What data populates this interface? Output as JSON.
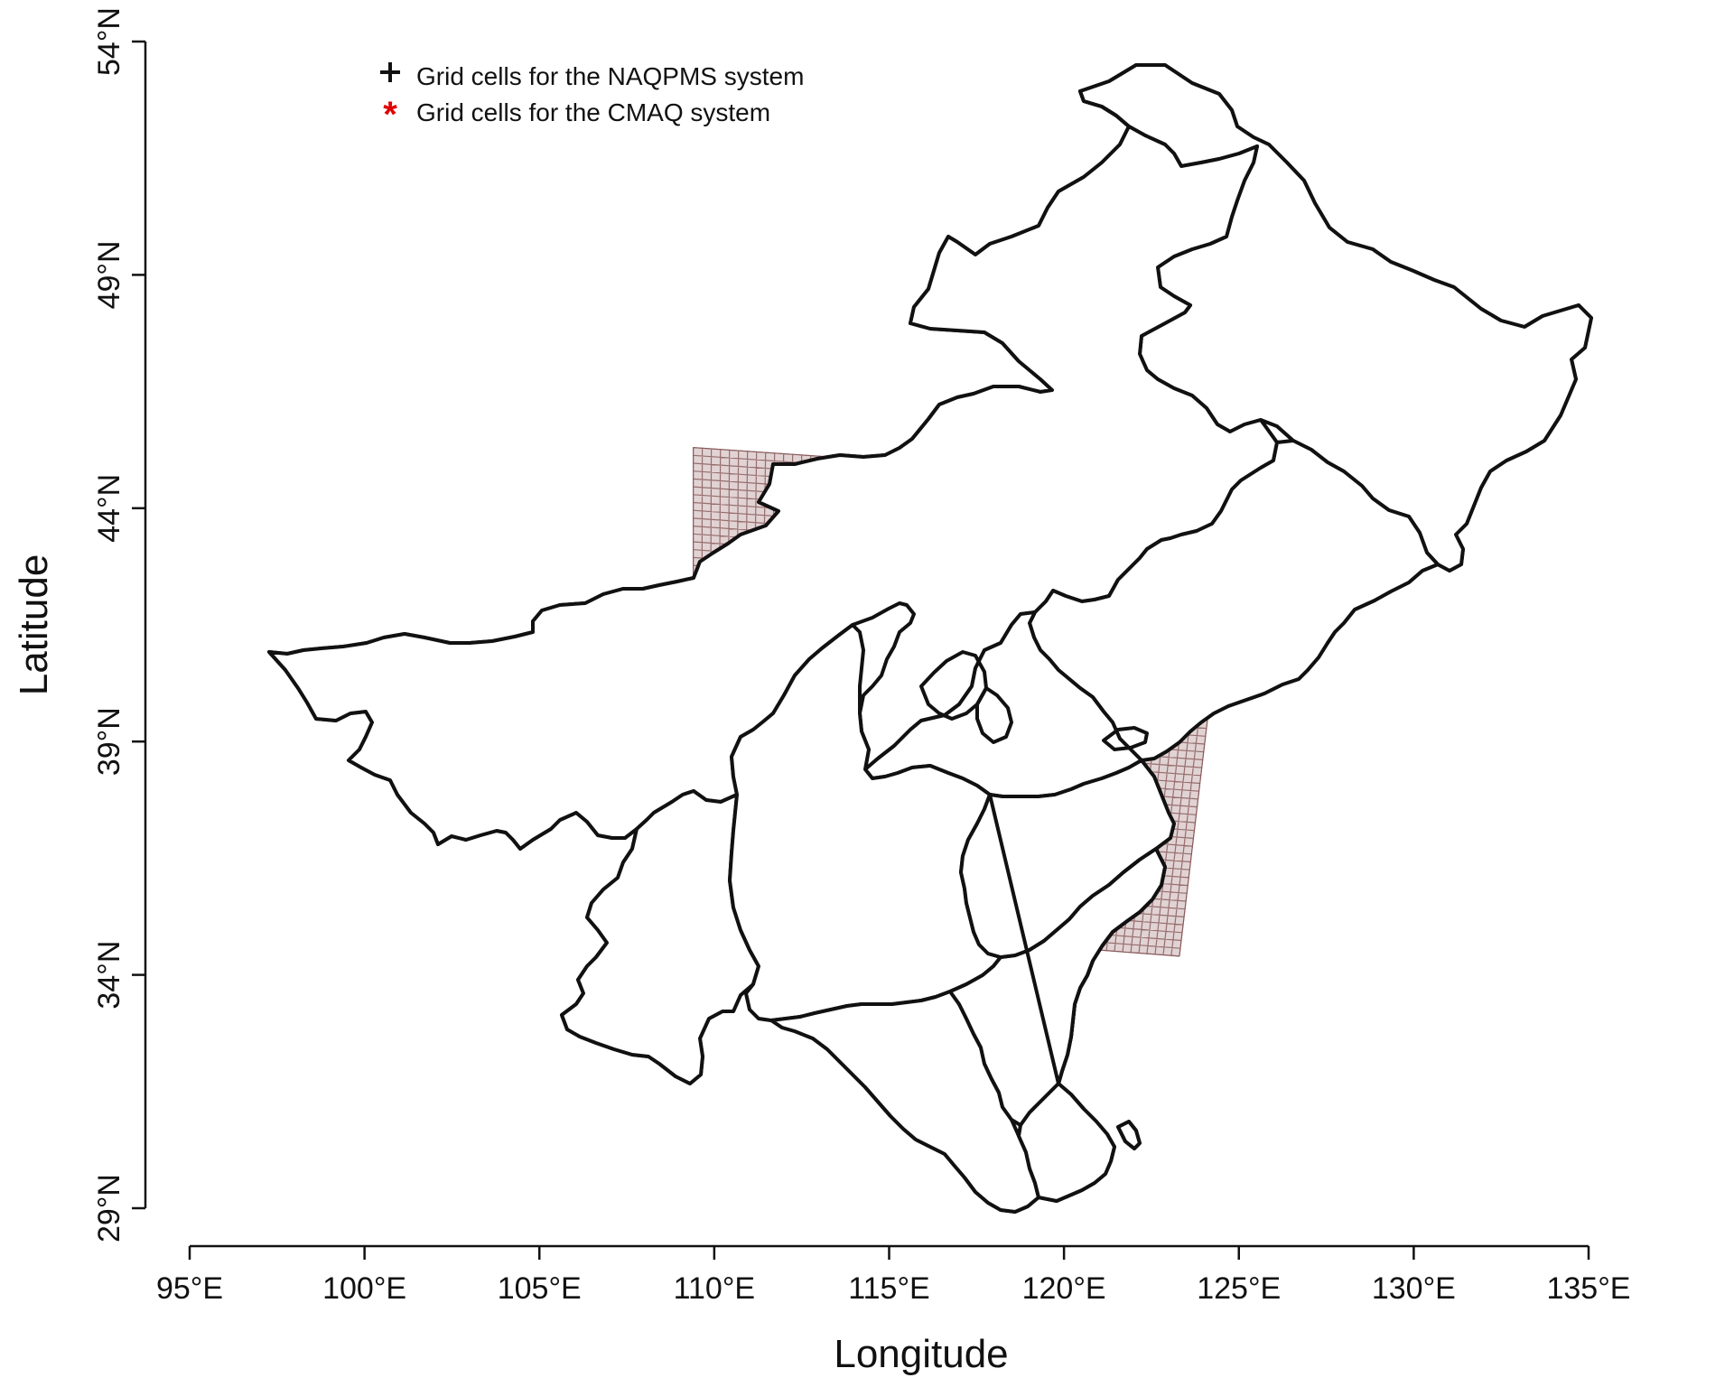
{
  "chart_data": {
    "type": "map",
    "xlabel": "Longitude",
    "ylabel": "Latitude",
    "xlim": [
      95,
      135
    ],
    "ylim": [
      29,
      54
    ],
    "x_ticks": [
      "95°E",
      "100°E",
      "105°E",
      "110°E",
      "115°E",
      "120°E",
      "125°E",
      "130°E",
      "135°E"
    ],
    "y_ticks": [
      "29°N",
      "34°N",
      "39°N",
      "44°N",
      "49°N",
      "54°N"
    ],
    "legend": {
      "placement": "top-left",
      "entries": [
        {
          "marker": "+",
          "color": "#111111",
          "label": "Grid cells for the NAQPMS system"
        },
        {
          "marker": "*",
          "color": "#e00000",
          "label": "Grid cells for the CMAQ system"
        }
      ]
    },
    "grid_domain": {
      "corners_lon_lat": [
        [
          109.4,
          45.3
        ],
        [
          124.9,
          44.5
        ],
        [
          123.3,
          34.4
        ],
        [
          109.4,
          35.2
        ]
      ],
      "grid_tint": "#8a5a5a",
      "cmaq_marker_color": "#e00000"
    }
  }
}
